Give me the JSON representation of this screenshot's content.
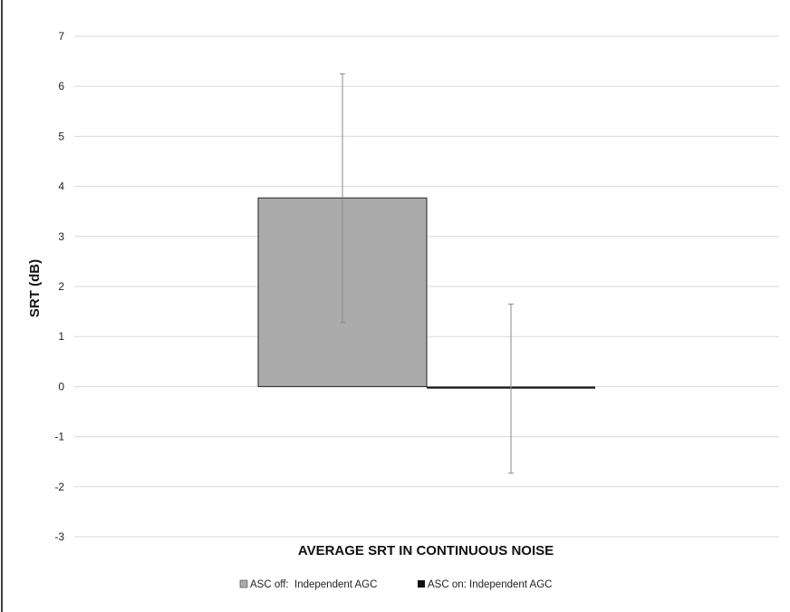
{
  "chart_data": {
    "type": "bar",
    "title": "",
    "xlabel": "AVERAGE SRT IN CONTINUOUS NOISE",
    "ylabel": "SRT (dB)",
    "ylim": [
      -3,
      7
    ],
    "yticks": [
      "7",
      "6",
      "5",
      "4",
      "3",
      "2",
      "1",
      "0",
      "-1",
      "-2",
      "-3"
    ],
    "grid": true,
    "legend_position": "bottom",
    "series": [
      {
        "name": "ASC off:  Independent AGC",
        "value": 3.77,
        "error_low": 1.28,
        "error_high": 6.25,
        "color": "#ababab"
      },
      {
        "name": "ASC on: Independent AGC",
        "value": -0.04,
        "error_low": -1.73,
        "error_high": 1.65,
        "color": "#111111"
      }
    ]
  }
}
